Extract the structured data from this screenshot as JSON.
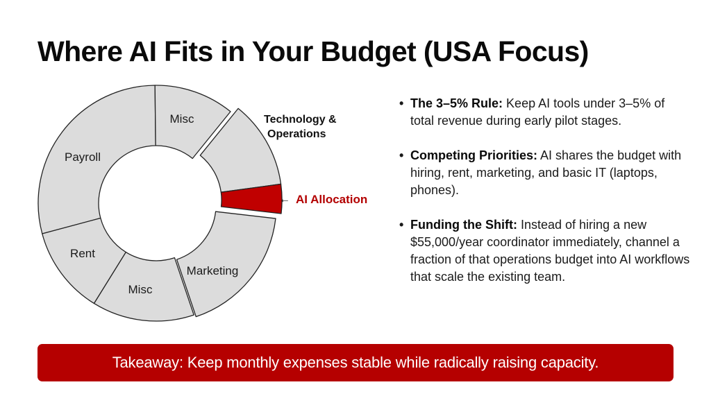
{
  "slide": {
    "title": "Where AI Fits in Your Budget (USA Focus)"
  },
  "colors": {
    "accent_red": "#b50000",
    "ai_slice_red": "#c00000",
    "segment_grey": "#dcdcdc",
    "segment_stroke": "#222222",
    "text_dark": "#111111"
  },
  "chart_data": {
    "type": "pie",
    "variant": "donut (exploded segment)",
    "title": "",
    "categories": [
      "Payroll",
      "Misc",
      "Technology & Operations",
      "AI Allocation",
      "Marketing",
      "Misc",
      "Rent"
    ],
    "values": [
      29,
      11,
      12,
      4,
      18,
      14,
      12
    ],
    "unit": "approx. % of budget (estimated from arc angles)",
    "highlighted": "AI Allocation",
    "exploded": [
      "Technology & Operations",
      "AI Allocation"
    ],
    "annotations": [
      {
        "text": "Technology & Operations",
        "target": "Technology & Operations"
      },
      {
        "text": "AI Allocation",
        "target": "AI Allocation",
        "arrow": "←",
        "color": "#b30000"
      }
    ],
    "legend": "none (labels on segments)"
  },
  "chart": {
    "segment_labels": {
      "payroll": "Payroll",
      "misc_top": "Misc",
      "rent": "Rent",
      "misc_bottom": "Misc",
      "marketing": "Marketing"
    },
    "tech_ops_label_line1": "Technology &",
    "tech_ops_label_line2": "Operations",
    "ai_arrow": "←",
    "ai_label": "AI Allocation"
  },
  "bullets": [
    {
      "lead": "The 3–5% Rule:",
      "text": " Keep AI tools under 3–5% of total revenue during early pilot stages."
    },
    {
      "lead": "Competing Priorities:",
      "text": " AI shares the budget with hiring, rent, marketing, and basic IT (laptops, phones)."
    },
    {
      "lead": "Funding the Shift:",
      "text": " Instead of hiring a new $55,000/year coordinator immediately, channel a fraction of that operations budget into AI workflows that scale the existing team."
    }
  ],
  "bullet_glyph": "•",
  "takeaway": {
    "text": "Takeaway: Keep monthly expenses stable while radically raising capacity."
  }
}
